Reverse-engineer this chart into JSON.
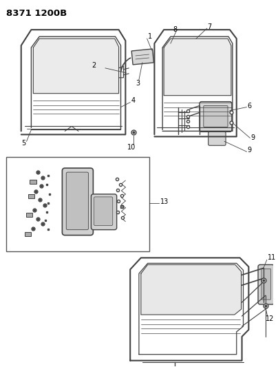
{
  "title": "8371 1200B",
  "background_color": "#ffffff",
  "line_color": "#404040",
  "label_color": "#000000",
  "fig_width": 4.04,
  "fig_height": 5.33,
  "dpi": 100,
  "label_fontsize": 7.0,
  "title_fontsize": 9.5
}
